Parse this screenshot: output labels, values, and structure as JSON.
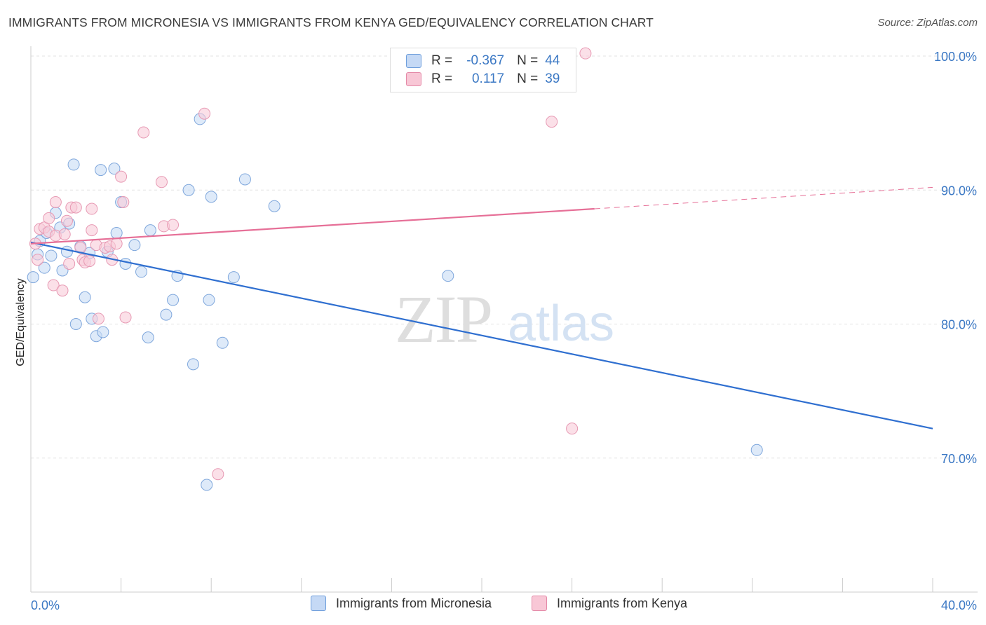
{
  "title": "IMMIGRANTS FROM MICRONESIA VS IMMIGRANTS FROM KENYA GED/EQUIVALENCY CORRELATION CHART",
  "source": "Source: ZipAtlas.com",
  "watermark": {
    "zip": "ZIP",
    "atlas": "atlas"
  },
  "legend": {
    "r_label": "R =",
    "n_label": "N =",
    "rows": [
      {
        "r": "-0.367",
        "n": "44",
        "swatch_fill": "#c5d9f5",
        "swatch_stroke": "#6f9fdc"
      },
      {
        "r": "0.117",
        "n": "39",
        "swatch_fill": "#f8c7d6",
        "swatch_stroke": "#e48aa8"
      }
    ]
  },
  "colors": {
    "blue_line": "#2f6fd0",
    "pink_line": "#e66f97",
    "blue_fill": "#c8dcf5",
    "blue_stroke": "#7fa7dc",
    "pink_fill": "#f9cbd9",
    "pink_stroke": "#e799b3",
    "tick_text": "#3b78c4"
  },
  "chart_data": {
    "type": "scatter",
    "title": "IMMIGRANTS FROM MICRONESIA VS IMMIGRANTS FROM KENYA GED/EQUIVALENCY CORRELATION CHART",
    "xlabel": "",
    "ylabel": "GED/Equivalency",
    "xlim": [
      0,
      40
    ],
    "ylim": [
      60,
      100
    ],
    "x_tick_labels": [
      "0.0%",
      "40.0%"
    ],
    "y_ticks": [
      70,
      80,
      90,
      100
    ],
    "y_tick_labels": [
      "70.0%",
      "80.0%",
      "90.0%",
      "100.0%"
    ],
    "grid": "horizontal dashed",
    "legend_position": "top-center",
    "series": [
      {
        "name": "Immigrants from Micronesia",
        "color": "#7fa7dc",
        "points": [
          [
            0.1,
            83.5
          ],
          [
            0.3,
            85.2
          ],
          [
            0.4,
            86.2
          ],
          [
            0.6,
            84.2
          ],
          [
            0.7,
            86.8
          ],
          [
            0.9,
            85.1
          ],
          [
            1.1,
            88.3
          ],
          [
            1.3,
            87.2
          ],
          [
            1.4,
            84.0
          ],
          [
            1.6,
            85.4
          ],
          [
            1.7,
            87.5
          ],
          [
            1.9,
            91.9
          ],
          [
            2.0,
            80.0
          ],
          [
            2.2,
            85.8
          ],
          [
            2.4,
            82.0
          ],
          [
            2.6,
            85.3
          ],
          [
            2.7,
            80.4
          ],
          [
            2.9,
            79.1
          ],
          [
            3.1,
            91.5
          ],
          [
            3.2,
            79.4
          ],
          [
            3.4,
            85.4
          ],
          [
            3.7,
            91.6
          ],
          [
            3.8,
            86.8
          ],
          [
            4.0,
            89.1
          ],
          [
            4.2,
            84.5
          ],
          [
            4.6,
            85.9
          ],
          [
            4.9,
            83.9
          ],
          [
            5.2,
            79.0
          ],
          [
            5.3,
            87.0
          ],
          [
            6.0,
            80.7
          ],
          [
            6.3,
            81.8
          ],
          [
            6.5,
            83.6
          ],
          [
            7.0,
            90.0
          ],
          [
            7.2,
            77.0
          ],
          [
            7.5,
            95.3
          ],
          [
            7.8,
            68.0
          ],
          [
            7.9,
            81.8
          ],
          [
            8.0,
            89.5
          ],
          [
            8.5,
            78.6
          ],
          [
            9.0,
            83.5
          ],
          [
            9.5,
            90.8
          ],
          [
            10.8,
            88.8
          ],
          [
            18.5,
            83.6
          ],
          [
            32.2,
            70.6
          ]
        ]
      },
      {
        "name": "Immigrants from Kenya",
        "color": "#e799b3",
        "points": [
          [
            0.2,
            86.0
          ],
          [
            0.3,
            84.8
          ],
          [
            0.4,
            87.1
          ],
          [
            0.6,
            87.2
          ],
          [
            0.8,
            86.9
          ],
          [
            0.8,
            87.9
          ],
          [
            1.0,
            82.9
          ],
          [
            1.1,
            86.6
          ],
          [
            1.1,
            89.1
          ],
          [
            1.4,
            82.5
          ],
          [
            1.5,
            86.7
          ],
          [
            1.6,
            87.7
          ],
          [
            1.7,
            84.5
          ],
          [
            1.8,
            88.7
          ],
          [
            2.0,
            88.7
          ],
          [
            2.2,
            85.7
          ],
          [
            2.3,
            84.8
          ],
          [
            2.4,
            84.6
          ],
          [
            2.6,
            84.7
          ],
          [
            2.7,
            87.0
          ],
          [
            2.7,
            88.6
          ],
          [
            2.9,
            85.9
          ],
          [
            3.0,
            80.4
          ],
          [
            3.3,
            85.7
          ],
          [
            3.5,
            85.8
          ],
          [
            3.6,
            84.8
          ],
          [
            3.8,
            86.0
          ],
          [
            4.0,
            91.0
          ],
          [
            4.1,
            89.1
          ],
          [
            4.2,
            80.5
          ],
          [
            5.0,
            94.3
          ],
          [
            5.8,
            90.6
          ],
          [
            5.9,
            87.3
          ],
          [
            6.3,
            87.4
          ],
          [
            7.7,
            95.7
          ],
          [
            8.3,
            68.8
          ],
          [
            23.1,
            95.1
          ],
          [
            24.0,
            72.2
          ],
          [
            24.6,
            100.2
          ]
        ]
      }
    ],
    "trend_lines": [
      {
        "series": "Immigrants from Micronesia",
        "x": [
          0,
          40
        ],
        "y": [
          86.1,
          72.2
        ],
        "style": "solid"
      },
      {
        "series": "Immigrants from Kenya",
        "x": [
          0,
          25
        ],
        "y": [
          86.0,
          88.6
        ],
        "style": "solid"
      },
      {
        "series": "Immigrants from Kenya",
        "x": [
          25,
          40
        ],
        "y": [
          88.6,
          90.2
        ],
        "style": "dashed"
      }
    ]
  }
}
